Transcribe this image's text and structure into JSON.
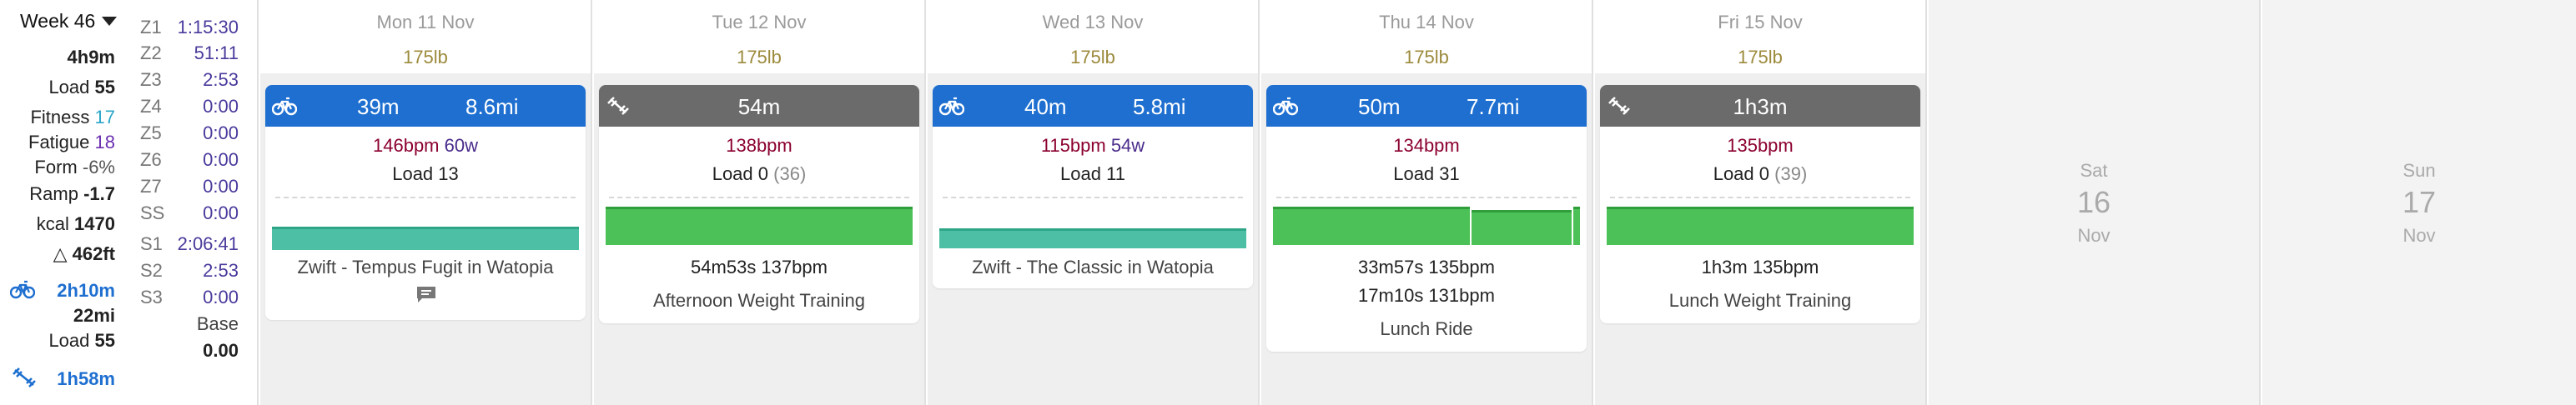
{
  "summary": {
    "week_label": "Week 46",
    "duration": "4h9m",
    "load_label": "Load",
    "load_value": "55",
    "fitness_label": "Fitness",
    "fitness_value": "17",
    "fatigue_label": "Fatigue",
    "fatigue_value": "18",
    "form_label": "Form",
    "form_value": "-6%",
    "ramp_label": "Ramp",
    "ramp_value": "-1.7",
    "kcal_label": "kcal",
    "kcal_value": "1470",
    "elevation": "462ft",
    "elevation_glyph": "△",
    "ride_duration": "2h10m",
    "ride_distance": "22mi",
    "ride_load_label": "Load",
    "ride_load_value": "55",
    "weight_duration": "1h58m",
    "power_zones": [
      {
        "zone": "Z1",
        "value": "1:15:30"
      },
      {
        "zone": "Z2",
        "value": "51:11"
      },
      {
        "zone": "Z3",
        "value": "2:53"
      },
      {
        "zone": "Z4",
        "value": "0:00"
      },
      {
        "zone": "Z5",
        "value": "0:00"
      },
      {
        "zone": "Z6",
        "value": "0:00"
      },
      {
        "zone": "Z7",
        "value": "0:00"
      },
      {
        "zone": "SS",
        "value": "0:00"
      }
    ],
    "sweet_zones": [
      {
        "zone": "S1",
        "value": "2:06:41"
      },
      {
        "zone": "S2",
        "value": "2:53"
      },
      {
        "zone": "S3",
        "value": "0:00"
      }
    ],
    "base_label": "Base",
    "base_value": "0.00"
  },
  "days": [
    {
      "date": "Mon 11 Nov",
      "weight": "175lb",
      "activity": {
        "type": "ride",
        "icon": "bike-icon",
        "duration": "39m",
        "distance": "8.6mi",
        "hr": "146bpm",
        "watts": "60w",
        "load_label": "Load",
        "load": "13",
        "load_paren": "",
        "intervals": [],
        "name": "Zwift - Tempus Fugit in Watopia",
        "has_comment": true
      }
    },
    {
      "date": "Tue 12 Nov",
      "weight": "175lb",
      "activity": {
        "type": "weight",
        "icon": "weight-training-icon",
        "duration": "54m",
        "hr": "138bpm",
        "load_label": "Load",
        "load": "0",
        "load_paren": "(36)",
        "intervals": [
          "54m53s 137bpm"
        ],
        "name": "Afternoon Weight Training",
        "has_comment": false
      }
    },
    {
      "date": "Wed 13 Nov",
      "weight": "175lb",
      "activity": {
        "type": "ride",
        "icon": "bike-icon",
        "duration": "40m",
        "distance": "5.8mi",
        "hr": "115bpm",
        "watts": "54w",
        "load_label": "Load",
        "load": "11",
        "load_paren": "",
        "intervals": [],
        "name": "Zwift - The Classic in Watopia",
        "has_comment": false
      }
    },
    {
      "date": "Thu 14 Nov",
      "weight": "175lb",
      "activity": {
        "type": "ride",
        "icon": "bike-icon",
        "duration": "50m",
        "distance": "7.7mi",
        "hr": "134bpm",
        "load_label": "Load",
        "load": "31",
        "load_paren": "",
        "intervals": [
          "33m57s 135bpm",
          "17m10s 131bpm"
        ],
        "name": "Lunch Ride",
        "has_comment": false
      }
    },
    {
      "date": "Fri 15 Nov",
      "weight": "175lb",
      "activity": {
        "type": "weight",
        "icon": "weight-training-icon",
        "duration": "1h3m",
        "hr": "135bpm",
        "load_label": "Load",
        "load": "0",
        "load_paren": "(39)",
        "intervals": [
          "1h3m 135bpm"
        ],
        "name": "Lunch Weight Training",
        "has_comment": false
      }
    },
    {
      "dow": "Sat",
      "day": "16",
      "month": "Nov"
    },
    {
      "dow": "Sun",
      "day": "17",
      "month": "Nov"
    }
  ],
  "colors": {
    "ride_header": "#1e6fd0",
    "weight_header": "#6b6b6b",
    "hr": "#8b0030",
    "watts": "#4a2b8c",
    "fitness": "#2aa6c9",
    "fatigue": "#6b2fb0",
    "weight": "#9c8a3c",
    "zone_value": "#4a3a9c"
  }
}
